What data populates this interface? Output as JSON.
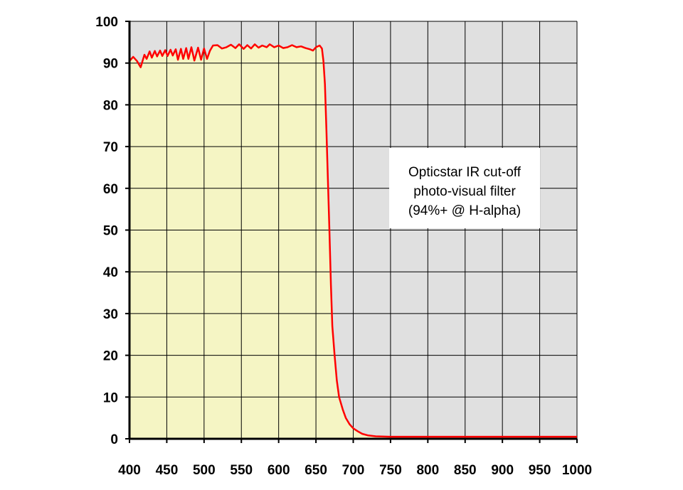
{
  "chart_data": {
    "type": "area",
    "title": "",
    "xlabel": "",
    "ylabel": "",
    "xlim": [
      400,
      1000
    ],
    "ylim": [
      0,
      100
    ],
    "x_ticks": [
      400,
      450,
      500,
      550,
      600,
      650,
      700,
      750,
      800,
      850,
      900,
      950,
      1000
    ],
    "y_ticks": [
      0,
      10,
      20,
      30,
      40,
      50,
      60,
      70,
      80,
      90,
      100
    ],
    "grid": true,
    "annotation": {
      "lines": [
        "Opticstar IR cut-off",
        "photo-visual filter",
        "(94%+ @ H-alpha)"
      ]
    },
    "colors": {
      "line": "#ff0000",
      "pass_fill": "#f5f5c4",
      "plot_background": "#e0e0e0",
      "grid": "#000000"
    },
    "series": [
      {
        "points": [
          [
            400,
            90.5
          ],
          [
            405,
            91.5
          ],
          [
            410,
            90.5
          ],
          [
            415,
            89.0
          ],
          [
            420,
            92.0
          ],
          [
            423,
            91.0
          ],
          [
            427,
            92.8
          ],
          [
            430,
            91.3
          ],
          [
            434,
            92.9
          ],
          [
            437,
            91.6
          ],
          [
            441,
            93.0
          ],
          [
            444,
            91.7
          ],
          [
            448,
            93.1
          ],
          [
            451,
            91.7
          ],
          [
            455,
            93.2
          ],
          [
            458,
            91.8
          ],
          [
            462,
            93.3
          ],
          [
            465,
            90.8
          ],
          [
            469,
            93.4
          ],
          [
            472,
            91.0
          ],
          [
            476,
            93.6
          ],
          [
            479,
            91.0
          ],
          [
            483,
            93.8
          ],
          [
            487,
            90.6
          ],
          [
            492,
            93.7
          ],
          [
            496,
            90.8
          ],
          [
            500,
            93.5
          ],
          [
            504,
            91.0
          ],
          [
            508,
            93.0
          ],
          [
            512,
            94.2
          ],
          [
            518,
            94.3
          ],
          [
            524,
            93.5
          ],
          [
            530,
            93.8
          ],
          [
            536,
            94.4
          ],
          [
            542,
            93.6
          ],
          [
            547,
            94.5
          ],
          [
            553,
            93.4
          ],
          [
            558,
            94.3
          ],
          [
            563,
            93.5
          ],
          [
            568,
            94.5
          ],
          [
            573,
            93.7
          ],
          [
            578,
            94.2
          ],
          [
            584,
            93.8
          ],
          [
            588,
            94.5
          ],
          [
            594,
            93.8
          ],
          [
            600,
            94.2
          ],
          [
            606,
            93.6
          ],
          [
            612,
            93.8
          ],
          [
            618,
            94.3
          ],
          [
            624,
            93.8
          ],
          [
            630,
            94.0
          ],
          [
            636,
            93.6
          ],
          [
            642,
            93.3
          ],
          [
            646,
            93.0
          ],
          [
            650,
            93.8
          ],
          [
            655,
            94.2
          ],
          [
            658,
            93.5
          ],
          [
            660,
            90.5
          ],
          [
            662,
            85.0
          ],
          [
            664,
            74.0
          ],
          [
            666,
            62.0
          ],
          [
            668,
            50.0
          ],
          [
            670,
            37.0
          ],
          [
            672,
            27.0
          ],
          [
            675,
            20.0
          ],
          [
            678,
            14.0
          ],
          [
            681,
            10.0
          ],
          [
            686,
            7.0
          ],
          [
            690,
            5.0
          ],
          [
            695,
            3.5
          ],
          [
            700,
            2.5
          ],
          [
            706,
            1.8
          ],
          [
            712,
            1.2
          ],
          [
            720,
            0.8
          ],
          [
            730,
            0.6
          ],
          [
            750,
            0.5
          ],
          [
            800,
            0.5
          ],
          [
            900,
            0.5
          ],
          [
            1000,
            0.5
          ]
        ]
      }
    ]
  }
}
